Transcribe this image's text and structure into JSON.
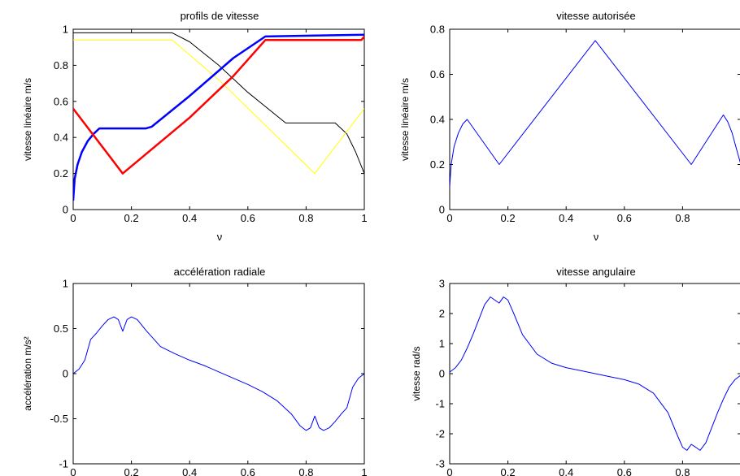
{
  "chart_data": [
    {
      "type": "line",
      "title": "profils de vitesse",
      "xlabel": "ν",
      "ylabel": "vitesse linéaire m/s",
      "xlim": [
        0,
        1
      ],
      "ylim": [
        0,
        1
      ],
      "xticks": [
        0,
        0.2,
        0.4,
        0.6,
        0.8,
        1
      ],
      "xtick_labels": [
        "0",
        "0.2",
        "0.4",
        "0.6",
        "0.8",
        "1"
      ],
      "yticks": [
        0,
        0.2,
        0.4,
        0.6,
        0.8,
        1
      ],
      "ytick_labels": [
        "0",
        "0.2",
        "0.4",
        "0.6",
        "0.8",
        "1"
      ],
      "grid": false,
      "series": [
        {
          "color": "#000000",
          "width": 1,
          "x": [
            0,
            0.34,
            0.4,
            0.5,
            0.6,
            0.73,
            0.9,
            0.94,
            0.97,
            1.0
          ],
          "y": [
            0.98,
            0.98,
            0.93,
            0.8,
            0.65,
            0.48,
            0.48,
            0.42,
            0.32,
            0.2
          ]
        },
        {
          "color": "#ffff00",
          "width": 1,
          "x": [
            0,
            0.34,
            0.5,
            0.83,
            1.0
          ],
          "y": [
            0.94,
            0.94,
            0.72,
            0.2,
            0.56
          ]
        },
        {
          "color": "#0000ff",
          "width": 2.5,
          "x": [
            0,
            0.005,
            0.015,
            0.03,
            0.05,
            0.07,
            0.09,
            0.25,
            0.27,
            0.4,
            0.55,
            0.66,
            1.0
          ],
          "y": [
            0.05,
            0.17,
            0.25,
            0.32,
            0.38,
            0.42,
            0.45,
            0.45,
            0.46,
            0.63,
            0.84,
            0.96,
            0.97
          ]
        },
        {
          "color": "#ff0000",
          "width": 2.5,
          "x": [
            0,
            0.17,
            0.4,
            0.55,
            0.66,
            0.99,
            1.0
          ],
          "y": [
            0.56,
            0.2,
            0.51,
            0.74,
            0.94,
            0.94,
            0.96
          ]
        }
      ]
    },
    {
      "type": "line",
      "title": "vitesse autorisée",
      "xlabel": "ν",
      "ylabel": "vitesse linéaire m/s",
      "xlim": [
        0,
        1
      ],
      "ylim": [
        0,
        0.8
      ],
      "xticks": [
        0,
        0.2,
        0.4,
        0.6,
        0.8
      ],
      "xtick_labels": [
        "0",
        "0.2",
        "0.4",
        "0.6",
        "0.8"
      ],
      "yticks": [
        0,
        0.2,
        0.4,
        0.6,
        0.8
      ],
      "ytick_labels": [
        "0",
        "0.2",
        "0.4",
        "0.6",
        "0.8"
      ],
      "grid": false,
      "series": [
        {
          "color": "#0000ff",
          "width": 1,
          "x": [
            0,
            0.005,
            0.015,
            0.03,
            0.045,
            0.06,
            0.17,
            0.5,
            0.83,
            0.94,
            0.955,
            0.97,
            0.985,
            1.0
          ],
          "y": [
            0.1,
            0.2,
            0.28,
            0.34,
            0.38,
            0.4,
            0.2,
            0.75,
            0.2,
            0.42,
            0.39,
            0.34,
            0.27,
            0.2
          ]
        }
      ]
    },
    {
      "type": "line",
      "title": "accélération radiale",
      "xlabel": "",
      "ylabel": "accélération m/s²",
      "xlim": [
        0,
        1
      ],
      "ylim": [
        -1,
        1
      ],
      "xticks": [
        0,
        0.2,
        0.4,
        0.6,
        0.8,
        1
      ],
      "xtick_labels": [
        "0",
        "0.2",
        "0.4",
        "0.6",
        "0.8",
        "1"
      ],
      "yticks": [
        -1,
        -0.5,
        0,
        0.5,
        1
      ],
      "ytick_labels": [
        "-1",
        "-0.5",
        "0",
        "0.5",
        "1"
      ],
      "grid": false,
      "series": [
        {
          "color": "#0000ff",
          "width": 1,
          "x": [
            0,
            0.02,
            0.04,
            0.06,
            0.08,
            0.1,
            0.12,
            0.14,
            0.155,
            0.17,
            0.185,
            0.2,
            0.22,
            0.25,
            0.3,
            0.35,
            0.4,
            0.45,
            0.5,
            0.55,
            0.6,
            0.65,
            0.7,
            0.75,
            0.78,
            0.8,
            0.815,
            0.83,
            0.845,
            0.86,
            0.88,
            0.9,
            0.92,
            0.94,
            0.96,
            0.98,
            1.0
          ],
          "y": [
            0.0,
            0.05,
            0.15,
            0.38,
            0.45,
            0.53,
            0.6,
            0.63,
            0.6,
            0.47,
            0.6,
            0.63,
            0.6,
            0.48,
            0.3,
            0.22,
            0.15,
            0.09,
            0.02,
            -0.05,
            -0.12,
            -0.2,
            -0.3,
            -0.45,
            -0.58,
            -0.63,
            -0.6,
            -0.47,
            -0.6,
            -0.63,
            -0.6,
            -0.53,
            -0.45,
            -0.38,
            -0.15,
            -0.05,
            0.0
          ]
        }
      ]
    },
    {
      "type": "line",
      "title": "vitesse angulaire",
      "xlabel": "",
      "ylabel": "vitesse rad/s",
      "xlim": [
        0,
        1
      ],
      "ylim": [
        -3,
        3
      ],
      "xticks": [
        0,
        0.2,
        0.4,
        0.6,
        0.8
      ],
      "xtick_labels": [
        "0",
        "0.2",
        "0.4",
        "0.6",
        "0.8"
      ],
      "yticks": [
        -3,
        -2,
        -1,
        0,
        1,
        2,
        3
      ],
      "ytick_labels": [
        "-3",
        "-2",
        "-1",
        "0",
        "1",
        "2",
        "3"
      ],
      "grid": false,
      "series": [
        {
          "color": "#0000ff",
          "width": 1,
          "x": [
            0,
            0.02,
            0.04,
            0.06,
            0.08,
            0.1,
            0.12,
            0.14,
            0.155,
            0.17,
            0.185,
            0.2,
            0.22,
            0.25,
            0.3,
            0.35,
            0.4,
            0.45,
            0.5,
            0.55,
            0.6,
            0.65,
            0.7,
            0.75,
            0.78,
            0.8,
            0.815,
            0.83,
            0.845,
            0.86,
            0.88,
            0.9,
            0.92,
            0.94,
            0.96,
            0.98,
            1.0
          ],
          "y": [
            0.05,
            0.2,
            0.45,
            0.85,
            1.3,
            1.8,
            2.3,
            2.55,
            2.45,
            2.35,
            2.55,
            2.45,
            2.0,
            1.3,
            0.65,
            0.35,
            0.2,
            0.1,
            0.0,
            -0.1,
            -0.2,
            -0.35,
            -0.65,
            -1.3,
            -2.0,
            -2.45,
            -2.55,
            -2.35,
            -2.45,
            -2.55,
            -2.3,
            -1.8,
            -1.3,
            -0.85,
            -0.45,
            -0.2,
            -0.05
          ]
        }
      ]
    }
  ]
}
